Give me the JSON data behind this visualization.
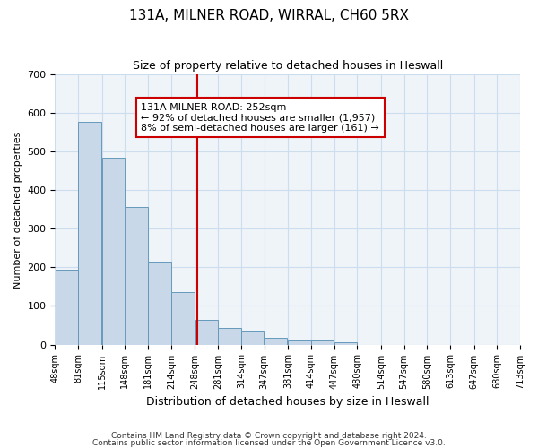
{
  "title": "131A, MILNER ROAD, WIRRAL, CH60 5RX",
  "subtitle": "Size of property relative to detached houses in Heswall",
  "xlabel": "Distribution of detached houses by size in Heswall",
  "ylabel": "Number of detached properties",
  "bar_left_edges": [
    48,
    81,
    115,
    148,
    181,
    214,
    248,
    281,
    314,
    347,
    381,
    414,
    447,
    480,
    514,
    547,
    580,
    613,
    647,
    680
  ],
  "bar_widths": [
    33,
    34,
    33,
    33,
    33,
    34,
    33,
    33,
    33,
    33,
    33,
    33,
    33,
    34,
    33,
    33,
    33,
    34,
    33,
    33
  ],
  "bar_heights": [
    193,
    578,
    484,
    356,
    215,
    135,
    63,
    44,
    35,
    17,
    11,
    10,
    5,
    0,
    0,
    0,
    0,
    0,
    0,
    0
  ],
  "tick_labels": [
    "48sqm",
    "81sqm",
    "115sqm",
    "148sqm",
    "181sqm",
    "214sqm",
    "248sqm",
    "281sqm",
    "314sqm",
    "347sqm",
    "381sqm",
    "414sqm",
    "447sqm",
    "480sqm",
    "514sqm",
    "547sqm",
    "580sqm",
    "613sqm",
    "647sqm",
    "680sqm",
    "713sqm"
  ],
  "tick_positions": [
    48,
    81,
    115,
    148,
    181,
    214,
    248,
    281,
    314,
    347,
    381,
    414,
    447,
    480,
    514,
    547,
    580,
    613,
    647,
    680,
    713
  ],
  "bar_color": "#c8d8e8",
  "bar_edge_color": "#6699bb",
  "vertical_line_x": 252,
  "vertical_line_color": "#cc0000",
  "annotation_title": "131A MILNER ROAD: 252sqm",
  "annotation_line1": "← 92% of detached houses are smaller (1,957)",
  "annotation_line2": "8% of semi-detached houses are larger (161) →",
  "annotation_border_color": "#cc0000",
  "ylim": [
    0,
    700
  ],
  "yticks": [
    0,
    100,
    200,
    300,
    400,
    500,
    600,
    700
  ],
  "grid_color": "#ccddee",
  "background_color": "#eef4f8",
  "footnote1": "Contains HM Land Registry data © Crown copyright and database right 2024.",
  "footnote2": "Contains public sector information licensed under the Open Government Licence v3.0."
}
